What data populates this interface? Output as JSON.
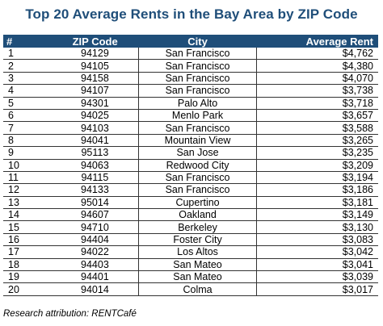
{
  "title": "Top 20 Average Rents in the Bay Area by ZIP Code",
  "headers": {
    "num": "#",
    "zip": "ZIP Code",
    "city": "City",
    "rent": "Average Rent"
  },
  "rows": [
    {
      "num": "1",
      "zip": "94129",
      "city": "San Francisco",
      "rent": "$4,762"
    },
    {
      "num": "2",
      "zip": "94105",
      "city": "San Francisco",
      "rent": "$4,380"
    },
    {
      "num": "3",
      "zip": "94158",
      "city": "San Francisco",
      "rent": "$4,070"
    },
    {
      "num": "4",
      "zip": "94107",
      "city": "San Francisco",
      "rent": "$3,738"
    },
    {
      "num": "5",
      "zip": "94301",
      "city": "Palo Alto",
      "rent": "$3,718"
    },
    {
      "num": "6",
      "zip": "94025",
      "city": "Menlo Park",
      "rent": "$3,657"
    },
    {
      "num": "7",
      "zip": "94103",
      "city": "San Francisco",
      "rent": "$3,588"
    },
    {
      "num": "8",
      "zip": "94041",
      "city": "Mountain View",
      "rent": "$3,265"
    },
    {
      "num": "9",
      "zip": "95113",
      "city": "San Jose",
      "rent": "$3,235"
    },
    {
      "num": "10",
      "zip": "94063",
      "city": "Redwood City",
      "rent": "$3,209"
    },
    {
      "num": "11",
      "zip": "94115",
      "city": "San Francisco",
      "rent": "$3,194"
    },
    {
      "num": "12",
      "zip": "94133",
      "city": "San Francisco",
      "rent": "$3,186"
    },
    {
      "num": "13",
      "zip": "95014",
      "city": "Cupertino",
      "rent": "$3,181"
    },
    {
      "num": "14",
      "zip": "94607",
      "city": "Oakland",
      "rent": "$3,149"
    },
    {
      "num": "15",
      "zip": "94710",
      "city": "Berkeley",
      "rent": "$3,130"
    },
    {
      "num": "16",
      "zip": "94404",
      "city": "Foster City",
      "rent": "$3,083"
    },
    {
      "num": "17",
      "zip": "94022",
      "city": "Los Altos",
      "rent": "$3,042"
    },
    {
      "num": "18",
      "zip": "94403",
      "city": "San Mateo",
      "rent": "$3,041"
    },
    {
      "num": "19",
      "zip": "94401",
      "city": "San Mateo",
      "rent": "$3,039"
    },
    {
      "num": "20",
      "zip": "94014",
      "city": "Colma",
      "rent": "$3,017"
    }
  ],
  "attribution": "Research attribution: RENTCafé",
  "colors": {
    "title": "#1f4e79",
    "header_bg": "#1f4e79",
    "header_text": "#ffffff"
  }
}
